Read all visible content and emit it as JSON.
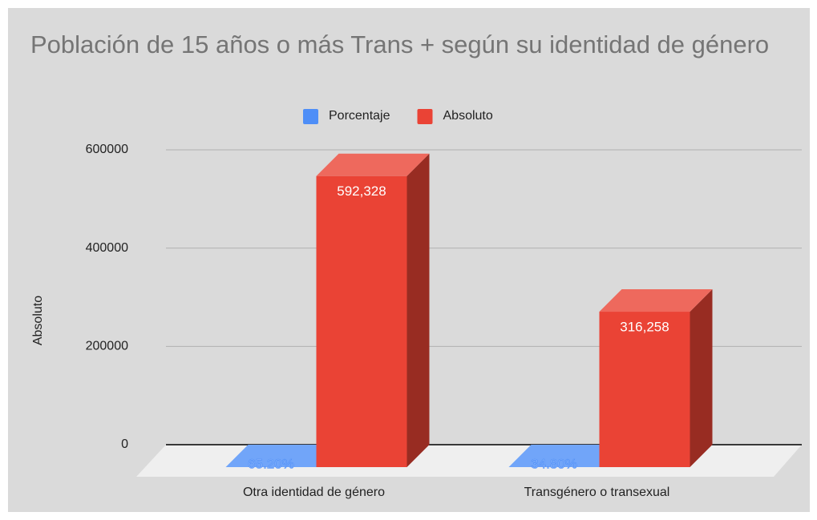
{
  "chart_data": {
    "type": "bar3d",
    "title": "Población de 15 años o más Trans + según su identidad de género",
    "y_label": "Absoluto",
    "categories": [
      "Otra identidad de género",
      "Transgénero o transexual"
    ],
    "series": [
      {
        "name": "Porcentaje",
        "color": "#4e8ef7",
        "values": [
          65.2,
          34.8
        ],
        "value_labels": [
          "65.20%",
          "34.80%"
        ]
      },
      {
        "name": "Absoluto",
        "color": "#ea4335",
        "values": [
          592328,
          316258
        ],
        "value_labels": [
          "592,328",
          "316,258"
        ]
      }
    ],
    "ylim": [
      0,
      600000
    ],
    "yticks": [
      0,
      200000,
      400000,
      600000
    ],
    "grid": true,
    "legend": "top"
  }
}
